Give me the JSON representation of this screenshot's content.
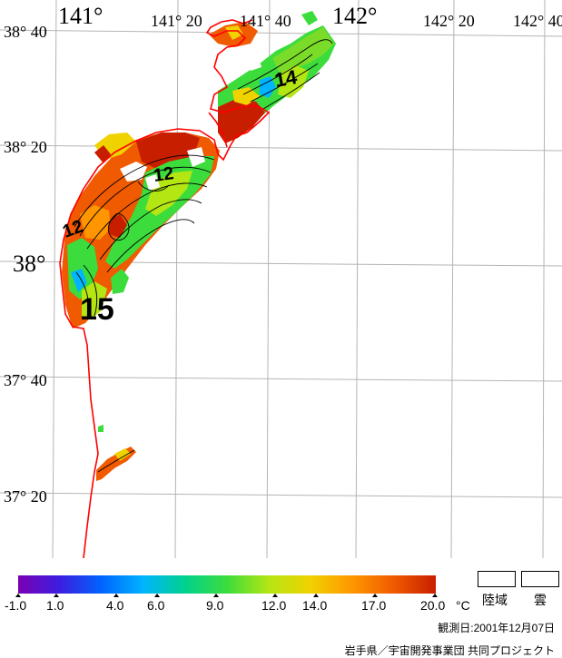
{
  "map": {
    "lon_labels": [
      "141°",
      "141° 20",
      "141° 40",
      "142°",
      "142° 20",
      "142° 40"
    ],
    "lat_labels": [
      "38° 40",
      "38° 20",
      "38°",
      "37° 40",
      "37° 20"
    ],
    "contour_labels": [
      "12",
      "12",
      "14",
      "15"
    ]
  },
  "legend": {
    "scale_labels": [
      "-1.0",
      "1.0",
      "4.0",
      "6.0",
      "9.0",
      "12.0",
      "14.0",
      "17.0",
      "20.0"
    ],
    "unit": "°C",
    "land_label": "陸域",
    "cloud_label": "雲",
    "colors": [
      "#7a00b4",
      "#3c1ee0",
      "#0064ff",
      "#00b4ff",
      "#00d28c",
      "#3cdc3c",
      "#b4e614",
      "#f0d200",
      "#ff9600",
      "#f05a00",
      "#c81e00"
    ]
  },
  "footer": {
    "observation_date": "観測日:2001年12月07日",
    "project": "岩手県／宇宙開発事業団 共同プロジェクト"
  }
}
